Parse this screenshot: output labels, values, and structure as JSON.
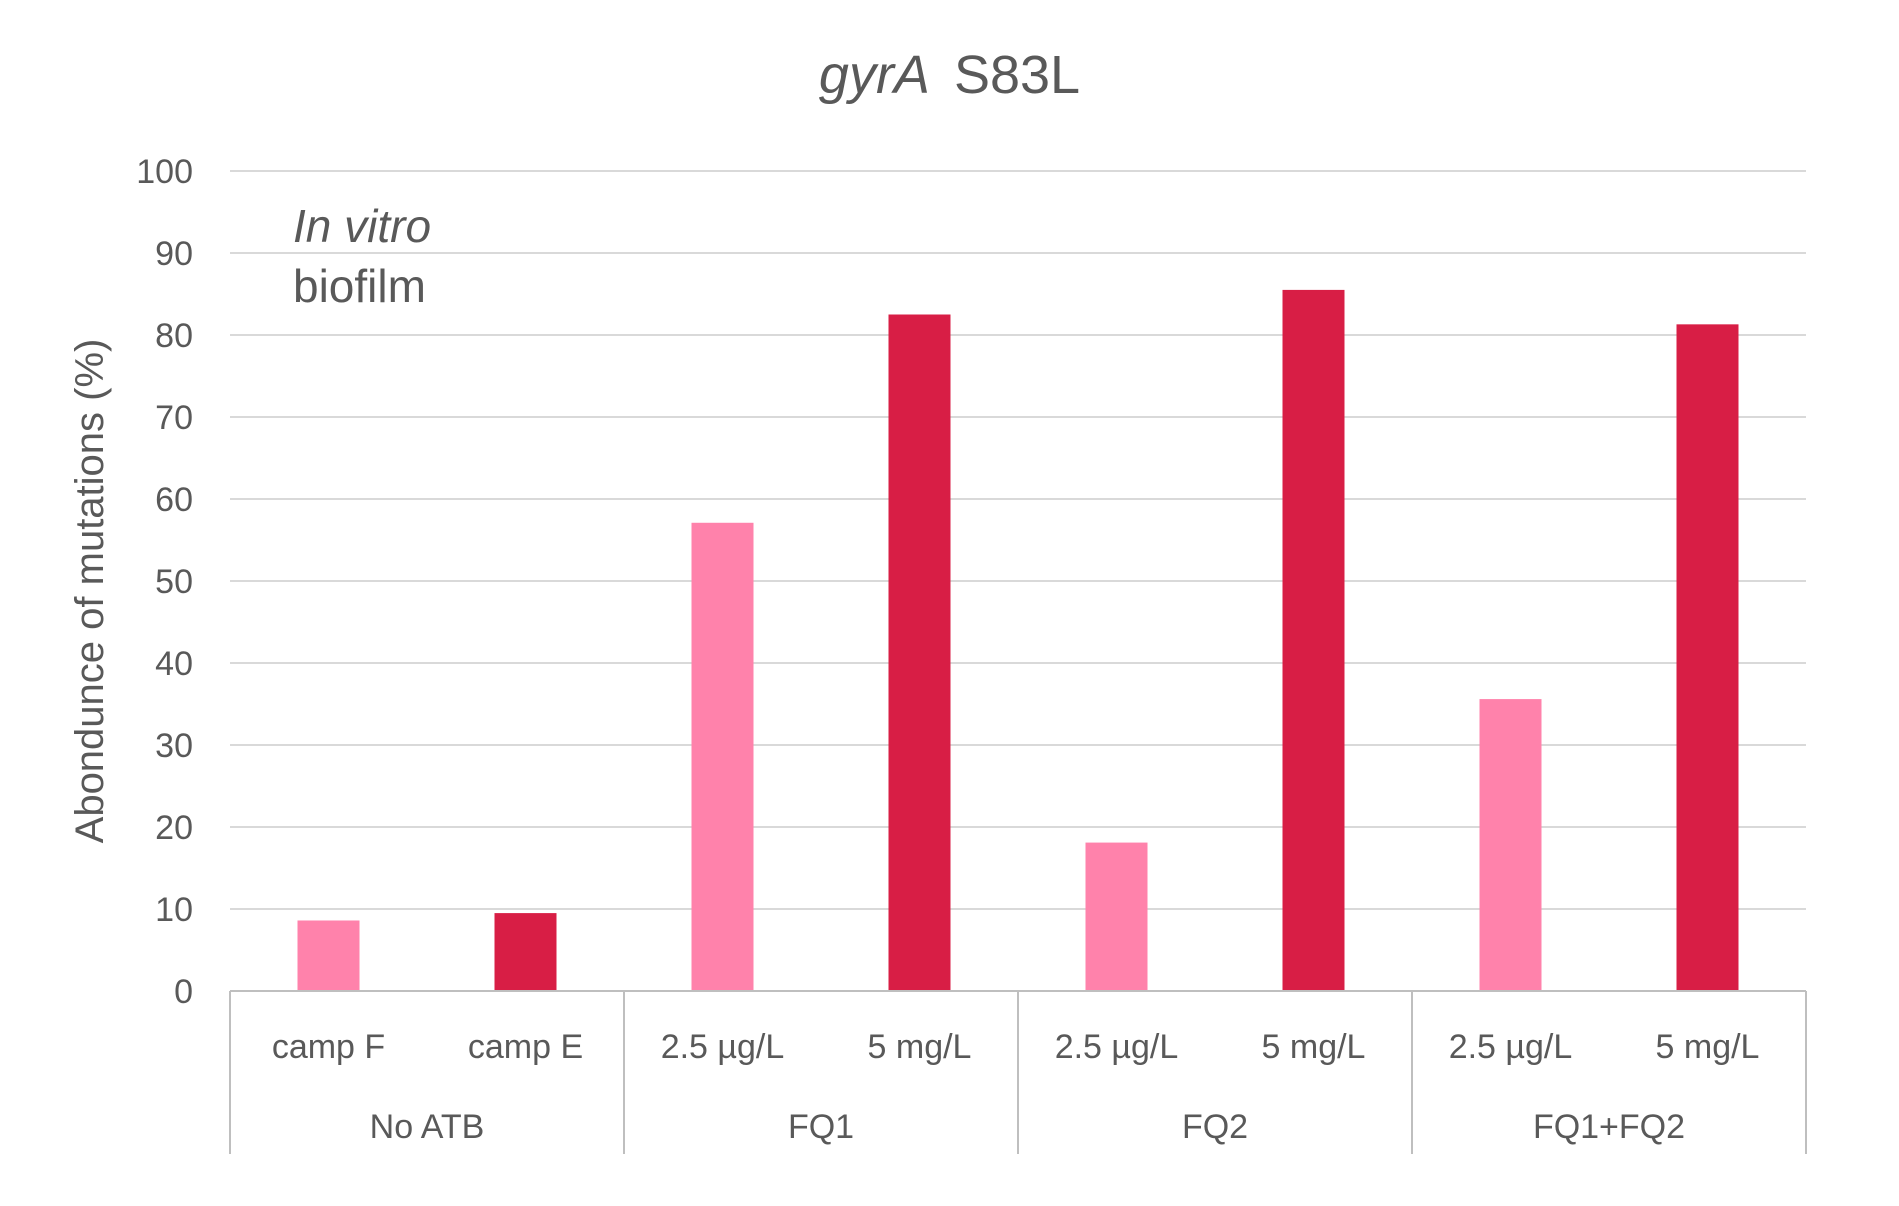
{
  "chart_data": {
    "type": "bar",
    "title_italic": "gyrA",
    "title_rest": "S83L",
    "annotation": [
      "In vitro",
      "biofilm"
    ],
    "ylabel": "Abondunce of mutations (%)",
    "ylim": [
      0,
      100
    ],
    "yticks": [
      0,
      10,
      20,
      30,
      40,
      50,
      60,
      70,
      80,
      90,
      100
    ],
    "grid": true,
    "groups": [
      {
        "label": "No ATB",
        "categories": [
          "camp F",
          "camp E"
        ],
        "values": [
          8.6,
          9.5
        ]
      },
      {
        "label": "FQ1",
        "categories": [
          "2.5 µg/L",
          "5 mg/L"
        ],
        "values": [
          57.1,
          82.5
        ]
      },
      {
        "label": "FQ2",
        "categories": [
          "2.5 µg/L",
          "5 mg/L"
        ],
        "values": [
          18.1,
          85.5
        ]
      },
      {
        "label": "FQ1+FQ2",
        "categories": [
          "2.5 µg/L",
          "5 mg/L"
        ],
        "values": [
          35.6,
          81.3
        ]
      }
    ],
    "colors": {
      "low": "#FF82AB",
      "high": "#D81E45",
      "grid": "#D9D9D9",
      "axis": "#BFBFBF",
      "text": "#595959"
    }
  }
}
